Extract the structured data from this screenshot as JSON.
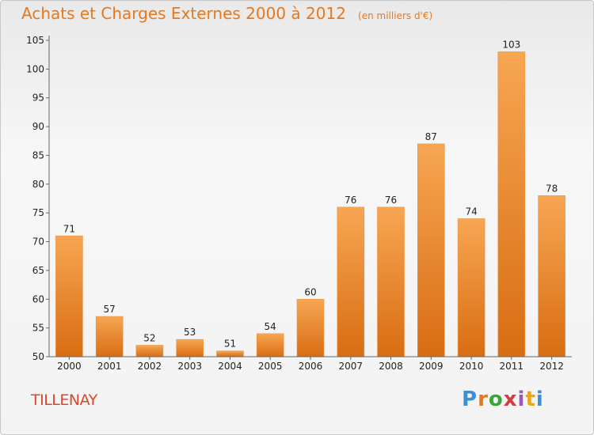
{
  "header": {
    "title": "Achats et Charges Externes 2000 à 2012",
    "subtitle": "(en milliers d'€)"
  },
  "footer": {
    "commune": "TILLENAY",
    "logo_letters": [
      "P",
      "r",
      "o",
      "x",
      "i",
      "t",
      "i"
    ],
    "logo_colors": [
      "#3b8fd6",
      "#e8781b",
      "#3aa53a",
      "#d63b3b",
      "#9b59b6",
      "#e8a81b",
      "#3b8fd6"
    ]
  },
  "colors": {
    "bar_top": "#f7a653",
    "bar_bottom": "#d86d12",
    "axis": "#666666"
  },
  "chart_data": {
    "type": "bar",
    "title": "Achats et Charges Externes 2000 à 2012",
    "subtitle": "(en milliers d'€)",
    "categories": [
      "2000",
      "2001",
      "2002",
      "2003",
      "2004",
      "2005",
      "2006",
      "2007",
      "2008",
      "2009",
      "2010",
      "2011",
      "2012"
    ],
    "values": [
      71,
      57,
      52,
      53,
      51,
      54,
      60,
      76,
      76,
      87,
      74,
      103,
      78
    ],
    "ylim": [
      50,
      105
    ],
    "yticks": [
      50,
      55,
      60,
      65,
      70,
      75,
      80,
      85,
      90,
      95,
      100,
      105
    ],
    "grid": false,
    "data_labels": true
  }
}
